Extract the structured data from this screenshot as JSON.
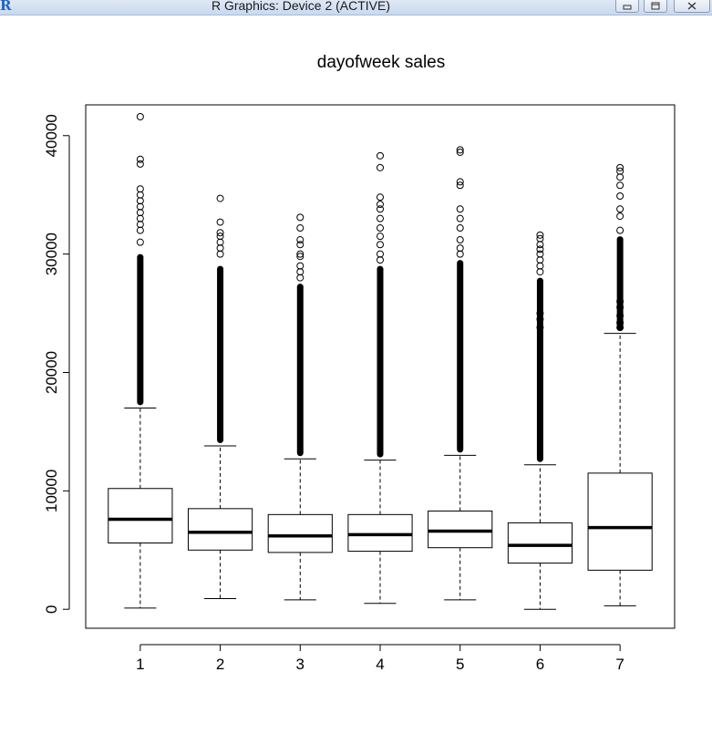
{
  "window": {
    "title": "R Graphics: Device 2 (ACTIVE)",
    "app_icon": "R"
  },
  "chart_data": {
    "type": "boxplot",
    "title": "dayofweek sales",
    "xlabel": "",
    "ylabel": "",
    "ylim": [
      -1600,
      42600
    ],
    "yticks": [
      0,
      10000,
      20000,
      30000,
      40000
    ],
    "categories": [
      "1",
      "2",
      "3",
      "4",
      "5",
      "6",
      "7"
    ],
    "grid": false,
    "boxes": [
      {
        "label": "1",
        "min": 100,
        "q1": 5600,
        "median": 7600,
        "q3": 10200,
        "whisker_high": 17000,
        "dense_outliers_to": 30000,
        "outliers": [
          31000,
          32000,
          32500,
          33000,
          33500,
          34000,
          34500,
          35000,
          35500,
          37600,
          38000,
          41600
        ]
      },
      {
        "label": "2",
        "min": 900,
        "q1": 5000,
        "median": 6500,
        "q3": 8500,
        "whisker_high": 13800,
        "dense_outliers_to": 29000,
        "outliers": [
          30000,
          30500,
          31000,
          31500,
          31800,
          32700,
          34700
        ]
      },
      {
        "label": "3",
        "min": 800,
        "q1": 4800,
        "median": 6200,
        "q3": 8000,
        "whisker_high": 12700,
        "dense_outliers_to": 27500,
        "outliers": [
          28000,
          28500,
          29000,
          29800,
          30000,
          30800,
          31200,
          32200,
          33100
        ]
      },
      {
        "label": "4",
        "min": 500,
        "q1": 4900,
        "median": 6300,
        "q3": 8000,
        "whisker_high": 12600,
        "dense_outliers_to": 29000,
        "outliers": [
          29500,
          30000,
          30800,
          31500,
          32200,
          33000,
          33800,
          34200,
          34800,
          37300,
          38300
        ]
      },
      {
        "label": "5",
        "min": 800,
        "q1": 5200,
        "median": 6600,
        "q3": 8300,
        "whisker_high": 13000,
        "dense_outliers_to": 29500,
        "outliers": [
          30000,
          30500,
          31200,
          32200,
          33000,
          33800,
          35800,
          36100,
          38600,
          38800
        ]
      },
      {
        "label": "6",
        "min": 0,
        "q1": 3900,
        "median": 5400,
        "q3": 7300,
        "whisker_high": 12200,
        "dense_outliers_to": 28000,
        "outliers": [
          23800,
          24500,
          25000,
          28500,
          29000,
          29500,
          30000,
          30400,
          30800,
          31300,
          31600
        ]
      },
      {
        "label": "7",
        "min": 300,
        "q1": 3300,
        "median": 6900,
        "q3": 11500,
        "whisker_high": 23300,
        "dense_outliers_to": 31500,
        "outliers": [
          23800,
          24200,
          24800,
          25500,
          26000,
          32000,
          33200,
          33800,
          34900,
          35800,
          36500,
          37000,
          37300
        ]
      }
    ]
  }
}
